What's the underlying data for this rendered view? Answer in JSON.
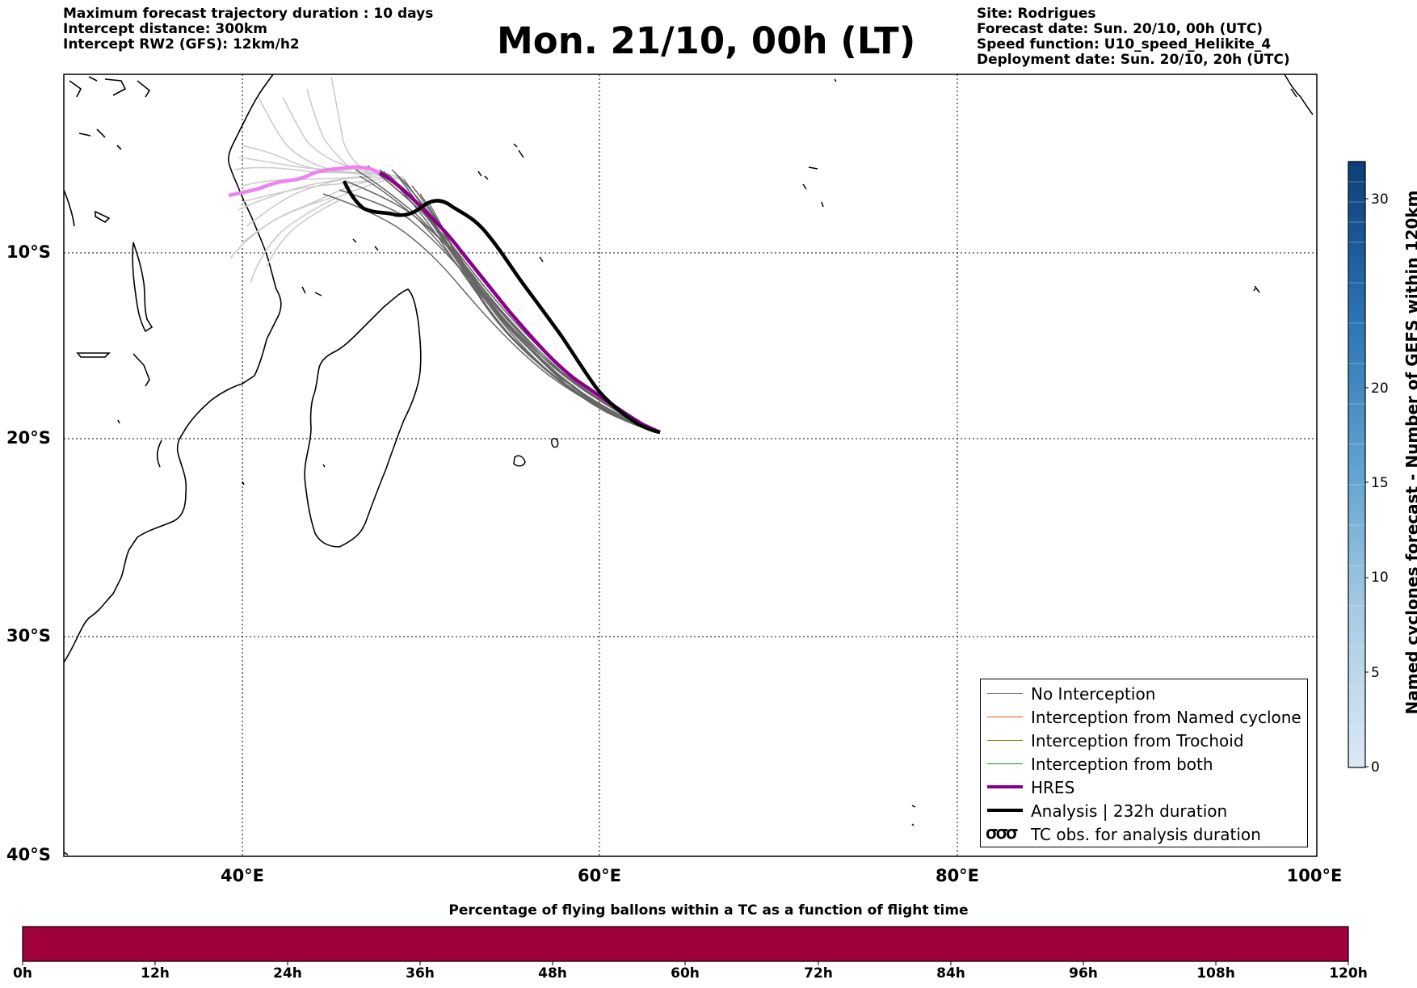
{
  "header_left": [
    "Maximum forecast trajectory duration : 10 days",
    "Intercept distance: 300km",
    "Intercept RW2 (GFS):  12km/h2"
  ],
  "header_right": [
    "Site: Rodrigues",
    "Forecast date: Sun. 20/10, 00h (UTC)",
    "Speed function: U10_speed_Helikite_4",
    "Deployment date: Sun. 20/10, 20h (UTC)"
  ],
  "title": "Mon. 21/10, 00h (LT)",
  "map": {
    "lon_range": [
      30,
      100
    ],
    "lat_range": [
      -40,
      0
    ],
    "lat_labels": [
      "10°S",
      "20°S",
      "30°S",
      "40°S"
    ],
    "lon_labels": [
      "40°E",
      "60°E",
      "80°E",
      "100°E"
    ],
    "colors": {
      "no_interception": "#666666",
      "hres": "#8b008b",
      "hres_early": "#ee82ee",
      "analysis": "#000000",
      "light_members": "#cccccc"
    }
  },
  "legend": {
    "items": [
      {
        "label": "No Interception",
        "color": "#777777"
      },
      {
        "label": "Interception from Named cyclone",
        "color": "#e05a1a"
      },
      {
        "label": "Interception from Trochoid",
        "color": "#808000"
      },
      {
        "label": "Interception from both",
        "color": "#1a8a1a"
      },
      {
        "label": "HRES",
        "color": "#8b008b"
      },
      {
        "label": "Analysis | 232h duration",
        "color": "#000000"
      },
      {
        "label": "TC obs. for analysis duration",
        "icon": "tc-symbol-icon"
      }
    ]
  },
  "colorbar": {
    "label": "Named cyclones forecast - Number of GEFS within 120km",
    "ticks": [
      "0",
      "5",
      "10",
      "15",
      "20",
      "30"
    ]
  },
  "bottom_bar": {
    "title": "Percentage of flying ballons within a TC as a function of flight time",
    "ticks": [
      "0h",
      "12h",
      "24h",
      "36h",
      "48h",
      "60h",
      "72h",
      "84h",
      "96h",
      "108h",
      "120h"
    ],
    "color": "#a0003c"
  }
}
